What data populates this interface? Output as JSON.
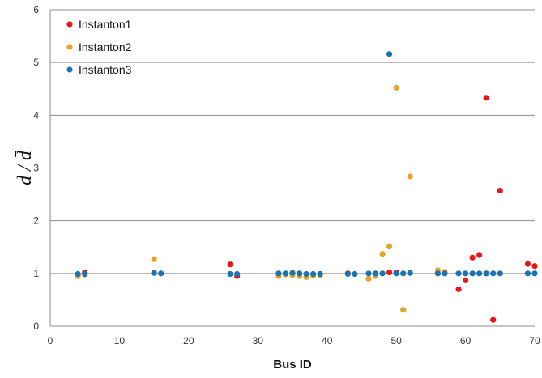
{
  "chart_data": {
    "type": "scatter",
    "xlabel": "Bus ID",
    "ylabel": "d / d̄",
    "xlim": [
      0,
      70
    ],
    "ylim": [
      0,
      6
    ],
    "xticks": [
      0,
      10,
      20,
      30,
      40,
      50,
      60,
      70
    ],
    "yticks": [
      0,
      1,
      2,
      3,
      4,
      5,
      6
    ],
    "grid": "horizontal",
    "legend_position": "top-left",
    "series": [
      {
        "name": "Instanton1",
        "color": "#e8161b",
        "points": [
          [
            5,
            1.02
          ],
          [
            26,
            1.17
          ],
          [
            27,
            0.95
          ],
          [
            43,
            1.0
          ],
          [
            49,
            1.02
          ],
          [
            50,
            1.02
          ],
          [
            59,
            0.7
          ],
          [
            60,
            0.87
          ],
          [
            61,
            1.3
          ],
          [
            62,
            1.35
          ],
          [
            63,
            4.33
          ],
          [
            64,
            0.12
          ],
          [
            65,
            2.57
          ],
          [
            69,
            1.18
          ],
          [
            70,
            1.14
          ]
        ]
      },
      {
        "name": "Instanton2",
        "color": "#e5a425",
        "points": [
          [
            4,
            0.95
          ],
          [
            5,
            0.98
          ],
          [
            15,
            1.27
          ],
          [
            33,
            0.95
          ],
          [
            34,
            0.98
          ],
          [
            35,
            0.97
          ],
          [
            36,
            0.95
          ],
          [
            37,
            0.93
          ],
          [
            38,
            0.96
          ],
          [
            39,
            0.97
          ],
          [
            46,
            0.9
          ],
          [
            47,
            0.95
          ],
          [
            48,
            1.37
          ],
          [
            49,
            1.51
          ],
          [
            50,
            4.52
          ],
          [
            51,
            0.31
          ],
          [
            52,
            2.84
          ],
          [
            56,
            1.06
          ],
          [
            57,
            1.03
          ]
        ]
      },
      {
        "name": "Instanton3",
        "color": "#1a73b5",
        "points": [
          [
            4,
            0.99
          ],
          [
            5,
            0.99
          ],
          [
            15,
            1.01
          ],
          [
            16,
            1.0
          ],
          [
            26,
            0.99
          ],
          [
            27,
            0.99
          ],
          [
            33,
            1.0
          ],
          [
            34,
            1.0
          ],
          [
            35,
            1.01
          ],
          [
            36,
            1.0
          ],
          [
            37,
            0.99
          ],
          [
            38,
            0.99
          ],
          [
            39,
            0.99
          ],
          [
            43,
            0.99
          ],
          [
            44,
            0.99
          ],
          [
            46,
            1.0
          ],
          [
            47,
            1.0
          ],
          [
            48,
            1.0
          ],
          [
            49,
            5.16
          ],
          [
            50,
            1.0
          ],
          [
            51,
            1.0
          ],
          [
            52,
            1.01
          ],
          [
            56,
            1.0
          ],
          [
            57,
            1.0
          ],
          [
            59,
            1.0
          ],
          [
            60,
            1.0
          ],
          [
            61,
            1.0
          ],
          [
            62,
            1.0
          ],
          [
            63,
            1.0
          ],
          [
            64,
            1.0
          ],
          [
            65,
            1.0
          ],
          [
            69,
            1.0
          ],
          [
            70,
            1.0
          ]
        ]
      }
    ]
  }
}
